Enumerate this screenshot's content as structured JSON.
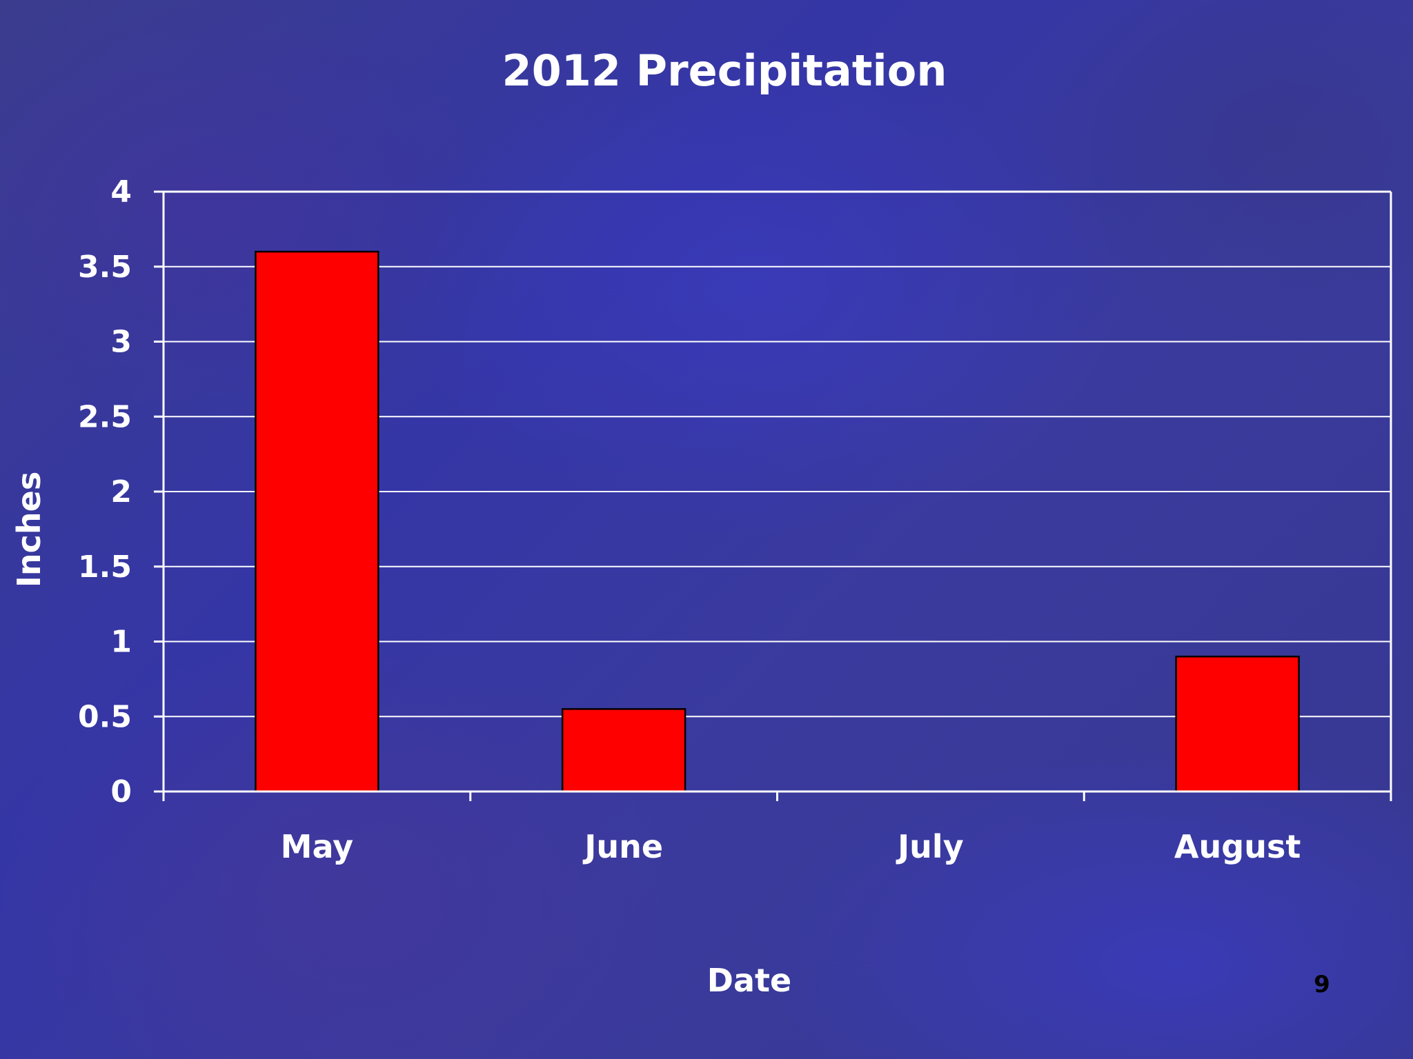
{
  "slide": {
    "number": "9"
  },
  "chart_data": {
    "type": "bar",
    "title": "2012 Precipitation",
    "xlabel": "Date",
    "ylabel": "Inches",
    "categories": [
      "May",
      "June",
      "July",
      "August"
    ],
    "values": [
      3.6,
      0.55,
      0,
      0.9
    ],
    "ylim": [
      0,
      4
    ],
    "yticks": [
      "0",
      "0.5",
      "1",
      "1.5",
      "2",
      "2.5",
      "3",
      "3.5",
      "4"
    ],
    "ytick_values": [
      0,
      0.5,
      1,
      1.5,
      2,
      2.5,
      3,
      3.5,
      4
    ],
    "grid": true,
    "legend": "none",
    "bar_color": "#ff0000",
    "background_color": "#36399a"
  }
}
